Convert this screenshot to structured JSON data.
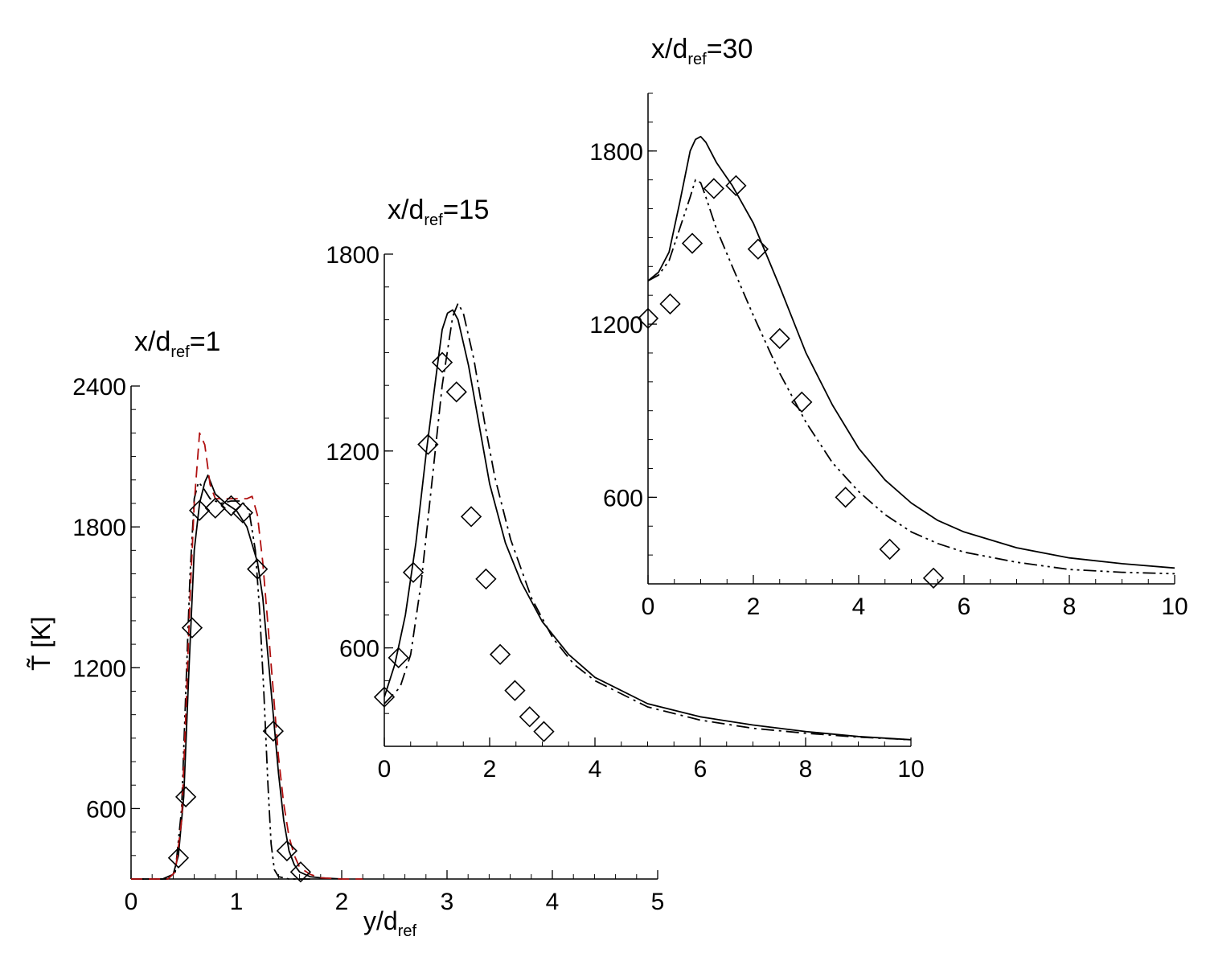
{
  "chart_data": [
    {
      "type": "line",
      "title": "x/d",
      "title_sub": "ref",
      "title_suffix": "=1",
      "xlabel": "y/d",
      "xlabel_sub": "ref",
      "ylabel": "T̃ [K]",
      "xlim": [
        0,
        5
      ],
      "ylim": [
        300,
        2400
      ],
      "x_ticks": [
        "0",
        "1",
        "2",
        "3",
        "4",
        "5"
      ],
      "y_ticks": [
        "600",
        "1200",
        "1800",
        "2400"
      ],
      "grid": false,
      "series": [
        {
          "style": "solid",
          "color": "#000000",
          "x": [
            0,
            0.3,
            0.4,
            0.45,
            0.5,
            0.55,
            0.6,
            0.65,
            0.7,
            0.73,
            0.8,
            0.9,
            1.0,
            1.1,
            1.2,
            1.25,
            1.3,
            1.35,
            1.4,
            1.45,
            1.5,
            1.55,
            1.6,
            1.7,
            1.8,
            2.0
          ],
          "y": [
            300,
            300,
            320,
            400,
            650,
            1200,
            1700,
            1900,
            1990,
            2020,
            1940,
            1900,
            1870,
            1800,
            1650,
            1500,
            1250,
            1000,
            750,
            550,
            420,
            360,
            330,
            310,
            305,
            300
          ]
        },
        {
          "style": "dashdotdot",
          "color": "#000000",
          "x": [
            0,
            0.35,
            0.42,
            0.48,
            0.52,
            0.56,
            0.6,
            0.64,
            0.68,
            0.75,
            0.85,
            0.95,
            1.05,
            1.12,
            1.18,
            1.22,
            1.26,
            1.3,
            1.33,
            1.36,
            1.4,
            1.5,
            1.7
          ],
          "y": [
            300,
            300,
            330,
            600,
            1100,
            1600,
            1920,
            1990,
            1970,
            1920,
            1900,
            1910,
            1910,
            1870,
            1700,
            1450,
            1100,
            700,
            450,
            340,
            310,
            300,
            300
          ]
        },
        {
          "style": "dashed",
          "color": "#b01010",
          "x": [
            0,
            0.35,
            0.42,
            0.48,
            0.52,
            0.56,
            0.6,
            0.65,
            0.7,
            0.75,
            0.8,
            0.9,
            1.0,
            1.1,
            1.15,
            1.2,
            1.25,
            1.3,
            1.35,
            1.4,
            1.45,
            1.5,
            1.55,
            1.6,
            1.7,
            1.8,
            2.0,
            2.2
          ],
          "y": [
            300,
            300,
            330,
            550,
            1000,
            1500,
            1900,
            2200,
            2150,
            1980,
            1920,
            1920,
            1920,
            1920,
            1930,
            1850,
            1650,
            1380,
            1100,
            820,
            620,
            480,
            400,
            350,
            320,
            305,
            300,
            300
          ]
        }
      ],
      "markers": {
        "shape": "diamond",
        "x": [
          0.45,
          0.52,
          0.58,
          0.65,
          0.8,
          0.95,
          1.06,
          1.2,
          1.35,
          1.48,
          1.61
        ],
        "y": [
          390,
          650,
          1370,
          1870,
          1880,
          1890,
          1860,
          1620,
          930,
          420,
          330
        ]
      }
    },
    {
      "type": "line",
      "title": "x/d",
      "title_sub": "ref",
      "title_suffix": "=15",
      "xlim": [
        0,
        10
      ],
      "ylim": [
        300,
        1800
      ],
      "x_ticks": [
        "0",
        "2",
        "4",
        "6",
        "8",
        "10"
      ],
      "y_ticks": [
        "600",
        "1200",
        "1800"
      ],
      "grid": false,
      "series": [
        {
          "style": "solid",
          "color": "#000000",
          "x": [
            0,
            0.2,
            0.4,
            0.6,
            0.8,
            1.0,
            1.1,
            1.2,
            1.3,
            1.4,
            1.6,
            1.8,
            2.0,
            2.3,
            2.6,
            3.0,
            3.5,
            4.0,
            5.0,
            6.0,
            7.0,
            8.0,
            9.0,
            10.0
          ],
          "y": [
            450,
            550,
            700,
            920,
            1200,
            1450,
            1570,
            1620,
            1630,
            1600,
            1460,
            1280,
            1100,
            920,
            800,
            680,
            580,
            510,
            430,
            390,
            365,
            345,
            330,
            320
          ]
        },
        {
          "style": "dashdot",
          "color": "#000000",
          "x": [
            0,
            0.3,
            0.5,
            0.7,
            0.9,
            1.1,
            1.3,
            1.4,
            1.5,
            1.7,
            1.9,
            2.1,
            2.4,
            2.8,
            3.2,
            3.6,
            4.0,
            5.0,
            6.0,
            7.0,
            8.0,
            9.0,
            10.0
          ],
          "y": [
            430,
            480,
            580,
            800,
            1100,
            1400,
            1610,
            1650,
            1620,
            1480,
            1290,
            1120,
            930,
            750,
            630,
            550,
            500,
            420,
            380,
            355,
            340,
            328,
            320
          ]
        }
      ],
      "markers": {
        "shape": "diamond",
        "x": [
          0,
          0.27,
          0.55,
          0.83,
          1.1,
          1.37,
          1.65,
          1.93,
          2.2,
          2.48,
          2.76,
          3.03
        ],
        "y": [
          450,
          570,
          830,
          1220,
          1470,
          1380,
          1000,
          810,
          580,
          470,
          390,
          345
        ]
      }
    },
    {
      "type": "line",
      "title": "x/d",
      "title_sub": "ref",
      "title_suffix": "=30",
      "xlim": [
        0,
        10
      ],
      "ylim": [
        300,
        2000
      ],
      "x_ticks": [
        "0",
        "2",
        "4",
        "6",
        "8",
        "10"
      ],
      "y_ticks": [
        "600",
        "1200",
        "1800"
      ],
      "grid": false,
      "series": [
        {
          "style": "solid",
          "color": "#000000",
          "x": [
            0,
            0.2,
            0.4,
            0.6,
            0.8,
            0.9,
            1.0,
            1.1,
            1.3,
            1.6,
            2.0,
            2.5,
            3.0,
            3.5,
            4.0,
            4.5,
            5.0,
            5.5,
            6.0,
            7.0,
            8.0,
            9.0,
            10.0
          ],
          "y": [
            1350,
            1380,
            1450,
            1620,
            1800,
            1840,
            1850,
            1830,
            1760,
            1680,
            1550,
            1330,
            1100,
            920,
            770,
            660,
            580,
            520,
            480,
            425,
            390,
            370,
            355
          ]
        },
        {
          "style": "dashdotdot",
          "color": "#000000",
          "x": [
            0,
            0.2,
            0.4,
            0.6,
            0.8,
            0.9,
            1.0,
            1.1,
            1.3,
            1.6,
            2.0,
            2.5,
            3.0,
            3.5,
            4.0,
            4.5,
            5.0,
            5.5,
            6.0,
            7.0,
            8.0,
            9.0,
            10.0
          ],
          "y": [
            1350,
            1370,
            1420,
            1530,
            1640,
            1700,
            1690,
            1640,
            1530,
            1400,
            1230,
            1030,
            860,
            720,
            620,
            540,
            480,
            440,
            410,
            375,
            350,
            340,
            335
          ]
        }
      ],
      "markers": {
        "shape": "diamond",
        "x": [
          0,
          0.42,
          0.84,
          1.25,
          1.67,
          2.09,
          2.5,
          2.92,
          3.75,
          4.59,
          5.42
        ],
        "y": [
          1220,
          1270,
          1480,
          1670,
          1680,
          1460,
          1150,
          930,
          600,
          420,
          320
        ]
      }
    }
  ]
}
